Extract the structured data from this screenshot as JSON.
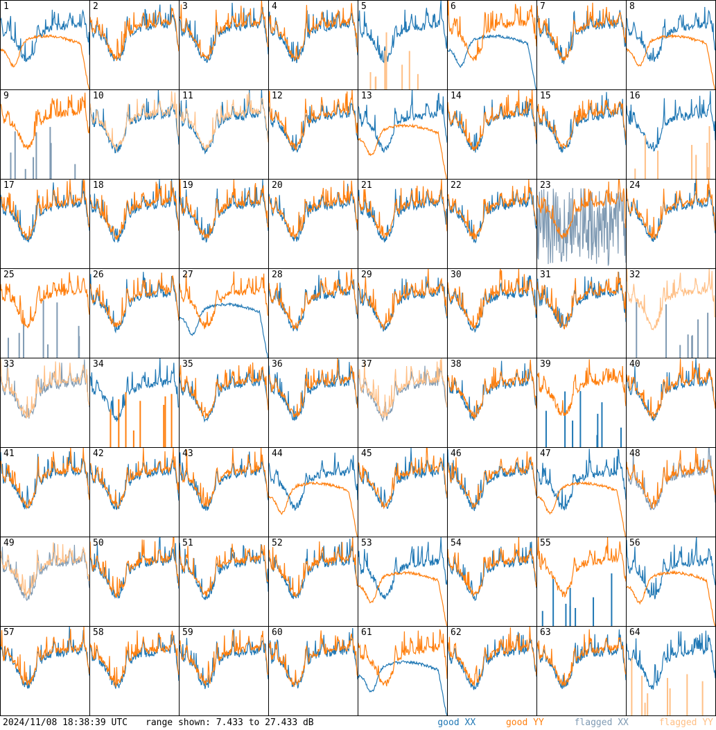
{
  "footer": {
    "timestamp": "2024/11/08 18:38:39 UTC",
    "range_text": "range shown: 7.433 to 27.433 dB"
  },
  "legend": [
    {
      "key": "good_xx",
      "label": "good XX",
      "color": "#1f77b4"
    },
    {
      "key": "good_yy",
      "label": "good YY",
      "color": "#ff7f0e"
    },
    {
      "key": "flagged_xx",
      "label": "flagged XX",
      "color": "#7f9ab3"
    },
    {
      "key": "flagged_yy",
      "label": "flagged YY",
      "color": "#ffbf85"
    }
  ],
  "chart_data": {
    "type": "line",
    "title": "",
    "ylim": [
      7.433,
      27.433
    ],
    "yunit": "dB",
    "grid_layout": "8x8",
    "panels": [
      {
        "id": 1,
        "xx": "normal",
        "yy": "broken"
      },
      {
        "id": 2,
        "xx": "normal",
        "yy": "normal"
      },
      {
        "id": 3,
        "xx": "normal",
        "yy": "normal"
      },
      {
        "id": 4,
        "xx": "normal",
        "yy": "normal"
      },
      {
        "id": 5,
        "xx": "normal",
        "yy": "flagged_spikes"
      },
      {
        "id": 6,
        "xx": "broken",
        "yy": "normal"
      },
      {
        "id": 7,
        "xx": "normal",
        "yy": "normal"
      },
      {
        "id": 8,
        "xx": "normal",
        "yy": "broken"
      },
      {
        "id": 9,
        "xx": "flagged_spikes",
        "yy": "normal"
      },
      {
        "id": 10,
        "xx": "normal",
        "yy": "flagged"
      },
      {
        "id": 11,
        "xx": "normal",
        "yy": "flagged"
      },
      {
        "id": 12,
        "xx": "normal",
        "yy": "normal"
      },
      {
        "id": 13,
        "xx": "normal",
        "yy": "broken"
      },
      {
        "id": 14,
        "xx": "normal",
        "yy": "normal"
      },
      {
        "id": 15,
        "xx": "normal",
        "yy": "normal"
      },
      {
        "id": 16,
        "xx": "normal",
        "yy": "flagged_spikes"
      },
      {
        "id": 17,
        "xx": "normal",
        "yy": "normal"
      },
      {
        "id": 18,
        "xx": "normal",
        "yy": "normal"
      },
      {
        "id": 19,
        "xx": "normal",
        "yy": "normal"
      },
      {
        "id": 20,
        "xx": "normal",
        "yy": "normal"
      },
      {
        "id": 21,
        "xx": "normal",
        "yy": "normal"
      },
      {
        "id": 22,
        "xx": "normal",
        "yy": "normal"
      },
      {
        "id": 23,
        "xx": "flagged_noise",
        "yy": "normal"
      },
      {
        "id": 24,
        "xx": "normal",
        "yy": "normal"
      },
      {
        "id": 25,
        "xx": "flagged_spikes",
        "yy": "normal"
      },
      {
        "id": 26,
        "xx": "normal",
        "yy": "normal"
      },
      {
        "id": 27,
        "xx": "broken",
        "yy": "normal"
      },
      {
        "id": 28,
        "xx": "normal",
        "yy": "normal"
      },
      {
        "id": 29,
        "xx": "normal",
        "yy": "normal"
      },
      {
        "id": 30,
        "xx": "normal",
        "yy": "normal"
      },
      {
        "id": 31,
        "xx": "normal",
        "yy": "normal"
      },
      {
        "id": 32,
        "xx": "flagged_spikes",
        "yy": "flagged"
      },
      {
        "id": 33,
        "xx": "flagged",
        "yy": "flagged"
      },
      {
        "id": 34,
        "xx": "normal",
        "yy": "spikes"
      },
      {
        "id": 35,
        "xx": "normal",
        "yy": "normal"
      },
      {
        "id": 36,
        "xx": "normal",
        "yy": "normal"
      },
      {
        "id": 37,
        "xx": "flagged",
        "yy": "flagged"
      },
      {
        "id": 38,
        "xx": "normal",
        "yy": "normal"
      },
      {
        "id": 39,
        "xx": "spikes",
        "yy": "normal"
      },
      {
        "id": 40,
        "xx": "normal",
        "yy": "normal"
      },
      {
        "id": 41,
        "xx": "normal",
        "yy": "normal"
      },
      {
        "id": 42,
        "xx": "normal",
        "yy": "normal"
      },
      {
        "id": 43,
        "xx": "normal",
        "yy": "normal"
      },
      {
        "id": 44,
        "xx": "normal",
        "yy": "broken"
      },
      {
        "id": 45,
        "xx": "normal",
        "yy": "normal"
      },
      {
        "id": 46,
        "xx": "normal",
        "yy": "normal"
      },
      {
        "id": 47,
        "xx": "normal",
        "yy": "broken"
      },
      {
        "id": 48,
        "xx": "flagged",
        "yy": "normal"
      },
      {
        "id": 49,
        "xx": "flagged",
        "yy": "flagged"
      },
      {
        "id": 50,
        "xx": "normal",
        "yy": "normal"
      },
      {
        "id": 51,
        "xx": "normal",
        "yy": "normal"
      },
      {
        "id": 52,
        "xx": "normal",
        "yy": "normal"
      },
      {
        "id": 53,
        "xx": "normal",
        "yy": "broken"
      },
      {
        "id": 54,
        "xx": "normal",
        "yy": "normal"
      },
      {
        "id": 55,
        "xx": "spikes",
        "yy": "normal"
      },
      {
        "id": 56,
        "xx": "normal",
        "yy": "broken"
      },
      {
        "id": 57,
        "xx": "normal",
        "yy": "normal"
      },
      {
        "id": 58,
        "xx": "normal",
        "yy": "normal"
      },
      {
        "id": 59,
        "xx": "normal",
        "yy": "normal"
      },
      {
        "id": 60,
        "xx": "normal",
        "yy": "normal"
      },
      {
        "id": 61,
        "xx": "broken",
        "yy": "normal"
      },
      {
        "id": 62,
        "xx": "normal",
        "yy": "normal"
      },
      {
        "id": 63,
        "xx": "normal",
        "yy": "normal"
      },
      {
        "id": 64,
        "xx": "normal",
        "yy": "flagged_spikes"
      }
    ]
  }
}
